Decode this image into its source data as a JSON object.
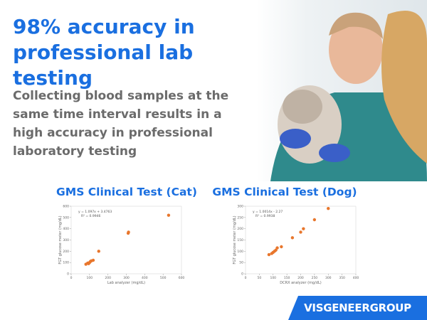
{
  "headline": "98% accuracy in professional lab testing",
  "body": "Collecting blood samples at the same time interval results in a high accuracy in professional laboratory testing",
  "footer": "VISGENEERGROUP",
  "chart_data": [
    {
      "type": "scatter",
      "title": "GMS Clinical Test (Cat)",
      "equation": "y = 1.097x + 3.4763",
      "r2": "R² = 0.9946",
      "x_label": "Lab analyzer (mg/dL)",
      "y_label": "FGT glucose meter (mg/dL)",
      "color": "#e8762c",
      "x": [
        80,
        90,
        95,
        100,
        105,
        110,
        120,
        150,
        310,
        312,
        530
      ],
      "y": [
        85,
        95,
        90,
        100,
        110,
        115,
        120,
        200,
        360,
        370,
        520
      ],
      "xlim": [
        0,
        600
      ],
      "xticks": [
        0,
        100,
        200,
        300,
        400,
        500,
        600
      ],
      "ylim": [
        0,
        600
      ],
      "yticks": [
        0,
        100,
        200,
        300,
        400,
        500,
        600
      ]
    },
    {
      "type": "scatter",
      "title": "GMS Clinical Test (Dog)",
      "equation": "y = 1.0014x - 2.27",
      "r2": "R² = 0.9938",
      "x_label": "DCRX analyzer (mg/dL)",
      "y_label": "FGT glucose meter (mg/dL)",
      "color": "#e8762c",
      "x": [
        85,
        95,
        100,
        105,
        110,
        115,
        130,
        170,
        200,
        210,
        250,
        300
      ],
      "y": [
        85,
        90,
        95,
        100,
        105,
        115,
        120,
        160,
        185,
        200,
        240,
        290
      ],
      "xlim": [
        0,
        400
      ],
      "xticks": [
        0,
        50,
        100,
        150,
        200,
        250,
        300,
        350,
        400
      ],
      "ylim": [
        0,
        300
      ],
      "yticks": [
        0,
        50,
        100,
        150,
        200,
        250,
        300
      ]
    }
  ]
}
